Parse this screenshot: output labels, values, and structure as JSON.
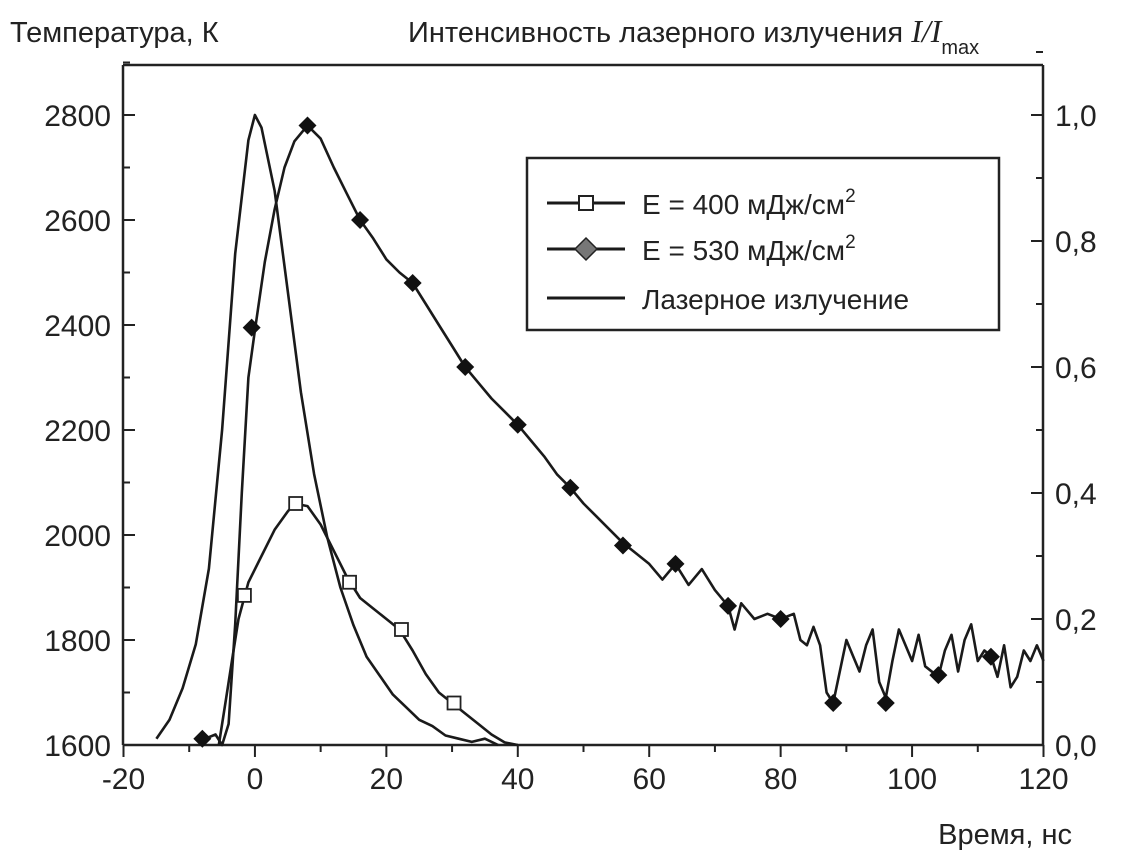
{
  "chart_data": {
    "type": "line",
    "title": "",
    "ylabel_left": "Температура, К",
    "ylabel_right_prefix": "Интенсивность лазерного излучения ",
    "ylabel_right_symbol": "I/I",
    "ylabel_right_sub": "max",
    "xlabel": "Время, нс",
    "xlim": [
      -20,
      120
    ],
    "ylim_left": [
      1600,
      2800
    ],
    "ylim_right": [
      0.0,
      1.0
    ],
    "x_ticks": [
      "-20",
      "0",
      "20",
      "40",
      "60",
      "80",
      "100",
      "120"
    ],
    "y_left_ticks": [
      "1600",
      "1800",
      "2000",
      "2200",
      "2400",
      "2600",
      "2800"
    ],
    "y_right_ticks": [
      "0,0",
      "0,2",
      "0,4",
      "0,6",
      "0,8",
      "1,0"
    ],
    "legend_position": "top-right",
    "series": [
      {
        "name": "E = 400 мДж/см",
        "sup": "2",
        "axis": "left",
        "marker": "open-square",
        "line": [
          [
            -5.5,
            1600
          ],
          [
            -4.5,
            1680
          ],
          [
            -3.5,
            1760
          ],
          [
            -2.5,
            1840
          ],
          [
            -1,
            1910
          ],
          [
            1,
            1960
          ],
          [
            3,
            2010
          ],
          [
            5,
            2045
          ],
          [
            6,
            2060
          ],
          [
            8,
            2055
          ],
          [
            10,
            2020
          ],
          [
            12,
            1970
          ],
          [
            14,
            1920
          ],
          [
            16,
            1880
          ],
          [
            18,
            1860
          ],
          [
            20,
            1840
          ],
          [
            22,
            1820
          ],
          [
            24,
            1780
          ],
          [
            26,
            1735
          ],
          [
            28,
            1700
          ],
          [
            30,
            1680
          ],
          [
            32,
            1660
          ],
          [
            34,
            1640
          ],
          [
            36,
            1620
          ],
          [
            38,
            1605
          ],
          [
            40,
            1600
          ]
        ],
        "markers": [
          [
            -1.6,
            1885
          ],
          [
            6.2,
            2060
          ],
          [
            14.4,
            1910
          ],
          [
            22.3,
            1820
          ],
          [
            30.3,
            1680
          ]
        ]
      },
      {
        "name": "E = 530 мДж/см",
        "sup": "2",
        "axis": "left",
        "marker": "filled-diamond",
        "line": [
          [
            -8,
            1610
          ],
          [
            -6,
            1620
          ],
          [
            -5,
            1600
          ],
          [
            -4,
            1640
          ],
          [
            -3,
            1830
          ],
          [
            -2,
            2080
          ],
          [
            -1,
            2300
          ],
          [
            0,
            2390
          ],
          [
            1.5,
            2520
          ],
          [
            3,
            2620
          ],
          [
            4.5,
            2700
          ],
          [
            6,
            2750
          ],
          [
            8,
            2780
          ],
          [
            10,
            2755
          ],
          [
            12,
            2700
          ],
          [
            14,
            2650
          ],
          [
            16,
            2600
          ],
          [
            18,
            2565
          ],
          [
            20,
            2525
          ],
          [
            22,
            2500
          ],
          [
            24,
            2480
          ],
          [
            26,
            2440
          ],
          [
            28,
            2400
          ],
          [
            30,
            2360
          ],
          [
            32,
            2320
          ],
          [
            34,
            2290
          ],
          [
            36,
            2260
          ],
          [
            38,
            2235
          ],
          [
            40,
            2210
          ],
          [
            42,
            2180
          ],
          [
            44,
            2150
          ],
          [
            46,
            2115
          ],
          [
            48,
            2090
          ],
          [
            50,
            2060
          ],
          [
            52,
            2035
          ],
          [
            54,
            2010
          ],
          [
            56,
            1985
          ],
          [
            58,
            1965
          ],
          [
            60,
            1945
          ],
          [
            62,
            1915
          ],
          [
            64,
            1945
          ],
          [
            66,
            1905
          ],
          [
            68,
            1935
          ],
          [
            70,
            1895
          ],
          [
            72,
            1865
          ],
          [
            73,
            1820
          ],
          [
            74,
            1870
          ],
          [
            76,
            1840
          ],
          [
            78,
            1850
          ],
          [
            80,
            1840
          ],
          [
            82,
            1850
          ],
          [
            83,
            1800
          ],
          [
            84,
            1790
          ],
          [
            85,
            1825
          ],
          [
            86,
            1790
          ],
          [
            87,
            1700
          ],
          [
            88,
            1680
          ],
          [
            89,
            1740
          ],
          [
            90,
            1800
          ],
          [
            91,
            1770
          ],
          [
            92,
            1740
          ],
          [
            93,
            1790
          ],
          [
            94,
            1820
          ],
          [
            95,
            1720
          ],
          [
            96,
            1690
          ],
          [
            97,
            1760
          ],
          [
            98,
            1820
          ],
          [
            99,
            1790
          ],
          [
            100,
            1760
          ],
          [
            101,
            1810
          ],
          [
            102,
            1750
          ],
          [
            104,
            1730
          ],
          [
            105,
            1780
          ],
          [
            106,
            1810
          ],
          [
            107,
            1740
          ],
          [
            108,
            1800
          ],
          [
            109,
            1830
          ],
          [
            110,
            1760
          ],
          [
            111,
            1780
          ],
          [
            112,
            1770
          ],
          [
            113,
            1730
          ],
          [
            114,
            1790
          ],
          [
            115,
            1710
          ],
          [
            116,
            1730
          ],
          [
            117,
            1780
          ],
          [
            118,
            1760
          ],
          [
            119,
            1790
          ],
          [
            120,
            1760
          ]
        ],
        "markers": [
          [
            -8,
            1612
          ],
          [
            -0.5,
            2395
          ],
          [
            8,
            2780
          ],
          [
            16,
            2600
          ],
          [
            24,
            2480
          ],
          [
            32,
            2320
          ],
          [
            40,
            2210
          ],
          [
            48,
            2090
          ],
          [
            56,
            1980
          ],
          [
            64,
            1945
          ],
          [
            72,
            1865
          ],
          [
            80,
            1840
          ],
          [
            88,
            1680
          ],
          [
            96,
            1680
          ],
          [
            104,
            1733
          ],
          [
            112,
            1768
          ]
        ]
      },
      {
        "name": "Лазерное излучение",
        "axis": "right",
        "marker": "none",
        "line": [
          [
            -15,
            0.01
          ],
          [
            -13,
            0.04
          ],
          [
            -11,
            0.09
          ],
          [
            -9,
            0.16
          ],
          [
            -7,
            0.28
          ],
          [
            -5,
            0.5
          ],
          [
            -3,
            0.78
          ],
          [
            -1,
            0.96
          ],
          [
            0,
            1.0
          ],
          [
            1,
            0.98
          ],
          [
            3,
            0.88
          ],
          [
            5,
            0.72
          ],
          [
            7,
            0.56
          ],
          [
            9,
            0.43
          ],
          [
            11,
            0.33
          ],
          [
            13,
            0.25
          ],
          [
            15,
            0.19
          ],
          [
            17,
            0.14
          ],
          [
            19,
            0.11
          ],
          [
            21,
            0.08
          ],
          [
            23,
            0.06
          ],
          [
            25,
            0.04
          ],
          [
            27,
            0.03
          ],
          [
            29,
            0.015
          ],
          [
            31,
            0.01
          ],
          [
            33,
            0.005
          ],
          [
            35,
            0.01
          ],
          [
            37,
            0.0
          ]
        ]
      }
    ]
  }
}
